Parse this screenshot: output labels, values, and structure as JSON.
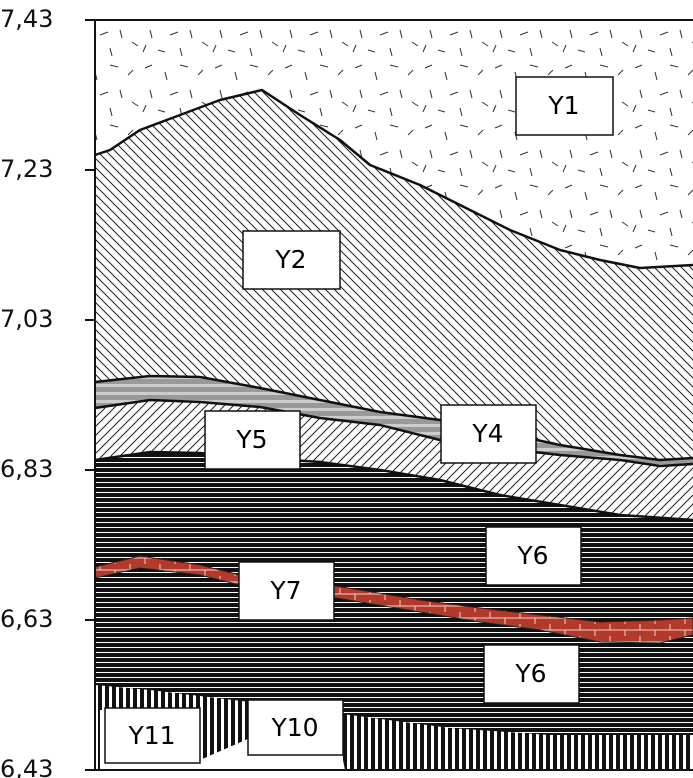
{
  "axis": {
    "ylim": [
      6.43,
      7.43
    ],
    "yticks": [
      {
        "value": 7.43,
        "label": "7,43"
      },
      {
        "value": 7.23,
        "label": "7,23"
      },
      {
        "value": 7.03,
        "label": "7,03"
      },
      {
        "value": 6.83,
        "label": "6,83"
      },
      {
        "value": 6.63,
        "label": "6,63"
      },
      {
        "value": 6.43,
        "label": "6,43"
      }
    ]
  },
  "layers": [
    {
      "label": "Y1"
    },
    {
      "label": "Y2"
    },
    {
      "label": "Y5"
    },
    {
      "label": "Y4"
    },
    {
      "label": "Y6"
    },
    {
      "label": "Y7"
    },
    {
      "label": "Y6"
    },
    {
      "label": "Y11"
    },
    {
      "label": "Y10"
    }
  ]
}
